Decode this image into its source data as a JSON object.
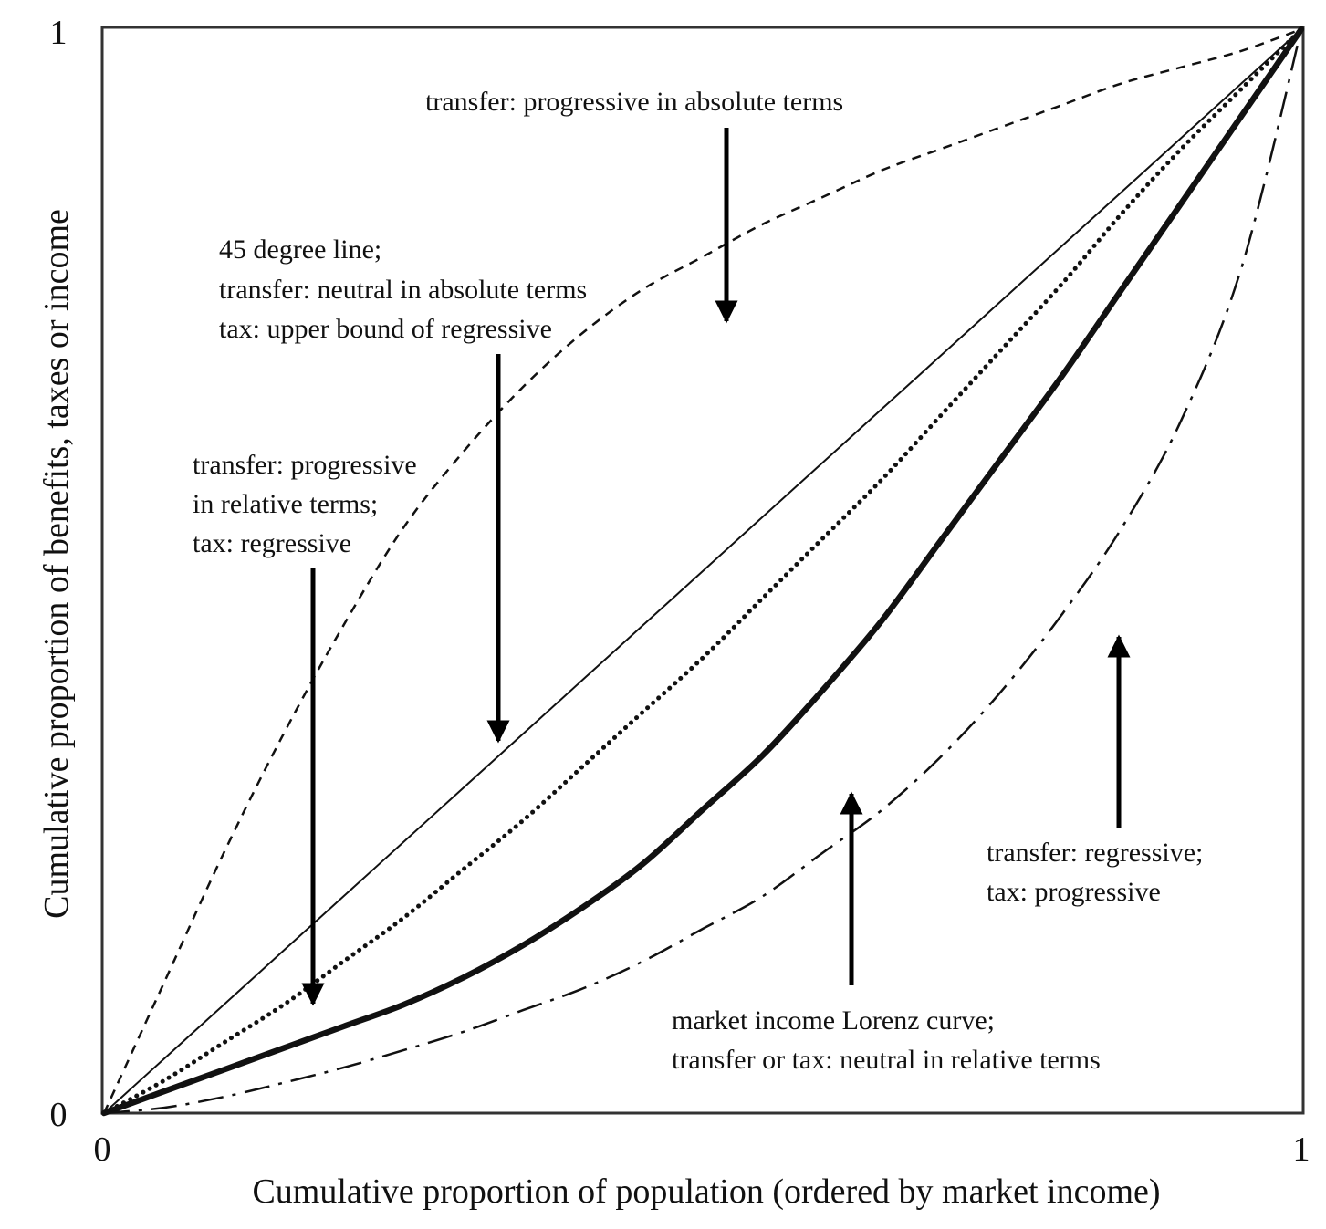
{
  "chart_data": {
    "type": "line",
    "xlabel": "Cumulative proportion of population (ordered by market income)",
    "ylabel": "Cumulative proportion of benefits, taxes or income",
    "xlim": [
      0,
      1
    ],
    "ylim": [
      0,
      1
    ],
    "x_ticks": [
      "0",
      "1"
    ],
    "y_ticks": [
      "0",
      "1"
    ],
    "grid": false,
    "legend": "none",
    "x": [
      0,
      0.05,
      0.1,
      0.15,
      0.2,
      0.25,
      0.3,
      0.35,
      0.4,
      0.45,
      0.5,
      0.55,
      0.6,
      0.65,
      0.7,
      0.75,
      0.8,
      0.85,
      0.9,
      0.95,
      1
    ],
    "series": [
      {
        "style": "dashed",
        "values": [
          0,
          0.12,
          0.24,
          0.35,
          0.45,
          0.54,
          0.61,
          0.67,
          0.72,
          0.76,
          0.79,
          0.82,
          0.845,
          0.87,
          0.89,
          0.91,
          0.93,
          0.95,
          0.965,
          0.98,
          1
        ]
      },
      {
        "style": "solid-thin",
        "values": [
          0,
          0.05,
          0.1,
          0.15,
          0.2,
          0.25,
          0.3,
          0.35,
          0.4,
          0.45,
          0.5,
          0.55,
          0.6,
          0.65,
          0.7,
          0.75,
          0.8,
          0.85,
          0.9,
          0.95,
          1
        ]
      },
      {
        "style": "dotted",
        "values": [
          0,
          0.03,
          0.065,
          0.1,
          0.14,
          0.18,
          0.225,
          0.27,
          0.32,
          0.37,
          0.42,
          0.475,
          0.53,
          0.585,
          0.645,
          0.705,
          0.765,
          0.83,
          0.89,
          0.945,
          1
        ]
      },
      {
        "style": "solid-thick",
        "values": [
          0,
          0.02,
          0.04,
          0.06,
          0.08,
          0.1,
          0.125,
          0.155,
          0.19,
          0.23,
          0.28,
          0.33,
          0.39,
          0.455,
          0.53,
          0.605,
          0.68,
          0.76,
          0.84,
          0.92,
          1
        ]
      },
      {
        "style": "dash-dot",
        "values": [
          0,
          0.005,
          0.015,
          0.028,
          0.042,
          0.058,
          0.075,
          0.095,
          0.115,
          0.14,
          0.17,
          0.2,
          0.24,
          0.28,
          0.33,
          0.39,
          0.46,
          0.54,
          0.64,
          0.78,
          1
        ]
      }
    ],
    "annotations": [
      {
        "lines": [
          "transfer: progressive in absolute terms"
        ]
      },
      {
        "lines": [
          "45 degree line;",
          "transfer: neutral in absolute terms",
          "tax: upper bound of regressive"
        ]
      },
      {
        "lines": [
          "transfer: progressive",
          "in relative terms;",
          "tax: regressive"
        ]
      },
      {
        "lines": [
          "transfer: regressive;",
          "tax: progressive"
        ]
      },
      {
        "lines": [
          "market income Lorenz curve;",
          "transfer or tax: neutral in relative terms"
        ]
      }
    ]
  }
}
